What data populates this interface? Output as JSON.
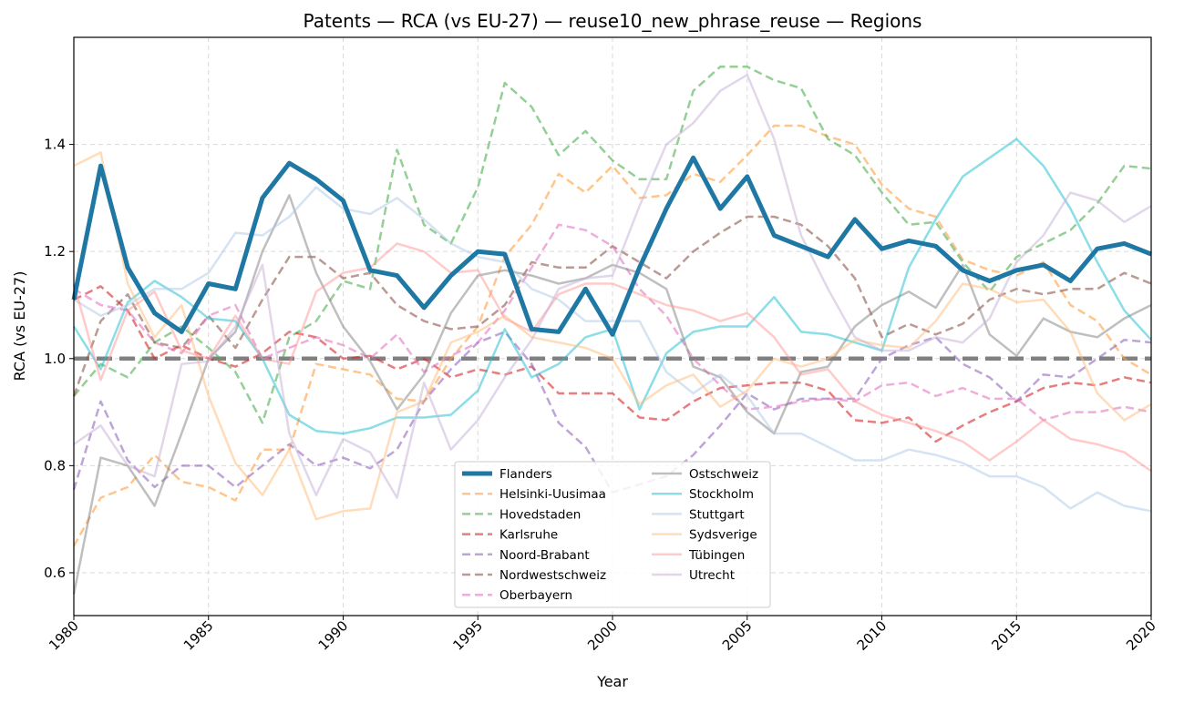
{
  "chart_data": {
    "type": "line",
    "title": "Patents — RCA (vs EU-27) — reuse10_new_phrase_reuse — Regions",
    "xlabel": "Year",
    "ylabel": "RCA (vs EU-27)",
    "xlim": [
      1980,
      2020
    ],
    "ylim": [
      0.52,
      1.6
    ],
    "xticks": [
      1980,
      1985,
      1990,
      1995,
      2000,
      2005,
      2010,
      2015,
      2020
    ],
    "yticks": [
      0.6,
      0.8,
      1.0,
      1.2,
      1.4
    ],
    "ytick_labels": [
      "0.6",
      "0.8",
      "1.0",
      "1.2",
      "1.4"
    ],
    "grid": true,
    "legend_position": "bottom-center",
    "reference_line": {
      "y": 1.0,
      "color": "#808080",
      "style": "dashed"
    },
    "x": [
      1980,
      1981,
      1982,
      1983,
      1984,
      1985,
      1986,
      1987,
      1988,
      1989,
      1990,
      1991,
      1992,
      1993,
      1994,
      1995,
      1996,
      1997,
      1998,
      1999,
      2000,
      2001,
      2002,
      2003,
      2004,
      2005,
      2006,
      2007,
      2008,
      2009,
      2010,
      2011,
      2012,
      2013,
      2014,
      2015,
      2016,
      2017,
      2018,
      2019,
      2020
    ],
    "series": [
      {
        "name": "Flanders",
        "color": "#1f77a4",
        "style": "solid",
        "emphasis": true,
        "values": [
          1.11,
          1.36,
          1.17,
          1.085,
          1.05,
          1.14,
          1.13,
          1.3,
          1.365,
          1.335,
          1.295,
          1.165,
          1.155,
          1.095,
          1.155,
          1.2,
          1.195,
          1.055,
          1.05,
          1.13,
          1.045,
          1.17,
          1.28,
          1.375,
          1.28,
          1.34,
          1.23,
          1.21,
          1.19,
          1.26,
          1.205,
          1.22,
          1.21,
          1.165,
          1.145,
          1.165,
          1.175,
          1.145,
          1.205,
          1.215,
          1.195
        ]
      },
      {
        "name": "Helsinki-Uusimaa",
        "color": "#ff9f40",
        "style": "dashed",
        "values": [
          0.65,
          0.74,
          0.76,
          0.82,
          0.77,
          0.76,
          0.735,
          0.83,
          0.83,
          0.99,
          0.98,
          0.97,
          0.925,
          0.92,
          1.0,
          1.06,
          1.19,
          1.25,
          1.345,
          1.31,
          1.36,
          1.3,
          1.305,
          1.345,
          1.33,
          1.38,
          1.435,
          1.435,
          1.415,
          1.4,
          1.325,
          1.28,
          1.265,
          1.185,
          1.165,
          1.155,
          1.18,
          1.1,
          1.07,
          1.0,
          0.97
        ]
      },
      {
        "name": "Hovedstaden",
        "color": "#4caf50",
        "style": "dashed",
        "values": [
          0.93,
          0.99,
          0.965,
          1.03,
          1.06,
          1.02,
          0.975,
          0.88,
          1.04,
          1.07,
          1.145,
          1.13,
          1.39,
          1.25,
          1.215,
          1.32,
          1.515,
          1.47,
          1.38,
          1.425,
          1.37,
          1.335,
          1.335,
          1.5,
          1.545,
          1.545,
          1.52,
          1.505,
          1.41,
          1.38,
          1.31,
          1.25,
          1.255,
          1.18,
          1.125,
          1.19,
          1.215,
          1.24,
          1.29,
          1.36,
          1.355
        ]
      },
      {
        "name": "Karlsruhe",
        "color": "#d62728",
        "style": "dashed",
        "values": [
          1.11,
          1.135,
          1.09,
          1.0,
          1.025,
          1.0,
          0.985,
          1.01,
          1.05,
          1.04,
          1.0,
          1.005,
          0.98,
          1.0,
          0.965,
          0.98,
          0.97,
          0.985,
          0.935,
          0.935,
          0.935,
          0.89,
          0.885,
          0.92,
          0.945,
          0.95,
          0.955,
          0.955,
          0.94,
          0.885,
          0.88,
          0.89,
          0.845,
          0.875,
          0.9,
          0.92,
          0.945,
          0.955,
          0.95,
          0.965,
          0.955
        ]
      },
      {
        "name": "Noord-Brabant",
        "color": "#9467bd",
        "style": "dashed",
        "values": [
          0.755,
          0.92,
          0.81,
          0.76,
          0.8,
          0.8,
          0.76,
          0.8,
          0.84,
          0.8,
          0.815,
          0.795,
          0.83,
          0.92,
          0.98,
          1.03,
          1.05,
          0.99,
          0.88,
          0.835,
          0.75,
          0.765,
          0.78,
          0.82,
          0.875,
          0.935,
          0.905,
          0.925,
          0.925,
          0.925,
          1.0,
          1.025,
          1.04,
          0.99,
          0.965,
          0.92,
          0.97,
          0.965,
          1.0,
          1.035,
          1.03
        ]
      },
      {
        "name": "Nordwestschweiz",
        "color": "#8c564b",
        "style": "dashed",
        "values": [
          0.93,
          1.07,
          1.12,
          1.03,
          1.02,
          1.08,
          1.02,
          1.11,
          1.19,
          1.19,
          1.15,
          1.16,
          1.1,
          1.07,
          1.055,
          1.06,
          1.1,
          1.18,
          1.17,
          1.17,
          1.21,
          1.18,
          1.15,
          1.2,
          1.235,
          1.265,
          1.265,
          1.25,
          1.21,
          1.15,
          1.04,
          1.065,
          1.045,
          1.065,
          1.11,
          1.13,
          1.12,
          1.13,
          1.13,
          1.16,
          1.14
        ]
      },
      {
        "name": "Oberbayern",
        "color": "#e377c2",
        "style": "dashed",
        "values": [
          1.13,
          1.1,
          1.09,
          1.03,
          1.01,
          1.08,
          1.1,
          1.0,
          1.02,
          1.04,
          1.025,
          1.0,
          1.045,
          0.975,
          1.005,
          1.03,
          1.09,
          1.17,
          1.25,
          1.24,
          1.21,
          1.13,
          1.08,
          1.0,
          0.95,
          0.905,
          0.91,
          0.92,
          0.925,
          0.92,
          0.95,
          0.955,
          0.93,
          0.945,
          0.925,
          0.925,
          0.885,
          0.9,
          0.9,
          0.91,
          0.9
        ]
      },
      {
        "name": "Ostschweiz",
        "color": "#7f7f7f",
        "style": "solid",
        "values": [
          0.56,
          0.815,
          0.8,
          0.725,
          0.86,
          1.0,
          1.05,
          1.2,
          1.305,
          1.16,
          1.06,
          0.995,
          0.905,
          0.97,
          1.085,
          1.155,
          1.165,
          1.155,
          1.14,
          1.15,
          1.175,
          1.16,
          1.13,
          0.985,
          0.965,
          0.9,
          0.86,
          0.975,
          0.985,
          1.06,
          1.1,
          1.125,
          1.095,
          1.175,
          1.045,
          1.005,
          1.075,
          1.05,
          1.04,
          1.075,
          1.1
        ]
      },
      {
        "name": "Stockholm",
        "color": "#17becf",
        "style": "solid",
        "values": [
          1.06,
          0.98,
          1.105,
          1.145,
          1.115,
          1.075,
          1.07,
          1.0,
          0.895,
          0.865,
          0.86,
          0.87,
          0.89,
          0.89,
          0.895,
          0.94,
          1.055,
          0.965,
          0.99,
          1.04,
          1.055,
          0.905,
          1.01,
          1.05,
          1.06,
          1.06,
          1.115,
          1.05,
          1.045,
          1.03,
          1.015,
          1.17,
          1.26,
          1.34,
          1.375,
          1.41,
          1.36,
          1.28,
          1.18,
          1.09,
          1.035
        ]
      },
      {
        "name": "Stuttgart",
        "color": "#aec7e8",
        "style": "solid",
        "values": [
          1.11,
          1.08,
          1.1,
          1.13,
          1.13,
          1.16,
          1.235,
          1.23,
          1.265,
          1.32,
          1.28,
          1.27,
          1.3,
          1.26,
          1.215,
          1.19,
          1.18,
          1.13,
          1.11,
          1.07,
          1.07,
          1.07,
          0.975,
          0.935,
          0.97,
          0.93,
          0.86,
          0.86,
          0.835,
          0.81,
          0.81,
          0.83,
          0.82,
          0.805,
          0.78,
          0.78,
          0.76,
          0.72,
          0.75,
          0.725,
          0.715
        ]
      },
      {
        "name": "Sydsverige",
        "color": "#ffbb78",
        "style": "solid",
        "values": [
          1.36,
          1.385,
          1.14,
          1.04,
          1.1,
          0.93,
          0.805,
          0.745,
          0.83,
          0.7,
          0.715,
          0.72,
          0.9,
          0.92,
          1.03,
          1.05,
          1.08,
          1.04,
          1.03,
          1.02,
          1.0,
          0.915,
          0.95,
          0.97,
          0.91,
          0.94,
          1.0,
          0.985,
          1.0,
          1.035,
          1.025,
          1.02,
          1.07,
          1.14,
          1.13,
          1.105,
          1.11,
          1.05,
          0.935,
          0.885,
          0.915
        ]
      },
      {
        "name": "Tübingen",
        "color": "#ff9896",
        "style": "solid",
        "values": [
          1.14,
          0.96,
          1.09,
          1.125,
          1.015,
          1.0,
          1.08,
          1.0,
          0.99,
          1.125,
          1.16,
          1.17,
          1.215,
          1.2,
          1.16,
          1.165,
          1.075,
          1.05,
          1.12,
          1.14,
          1.14,
          1.12,
          1.1,
          1.09,
          1.07,
          1.085,
          1.04,
          0.97,
          0.98,
          0.92,
          0.895,
          0.88,
          0.865,
          0.845,
          0.81,
          0.845,
          0.885,
          0.85,
          0.84,
          0.825,
          0.79
        ]
      },
      {
        "name": "Utrecht",
        "color": "#c5b0d5",
        "style": "solid",
        "values": [
          0.84,
          0.875,
          0.8,
          0.78,
          0.99,
          0.995,
          1.06,
          1.175,
          0.86,
          0.745,
          0.85,
          0.825,
          0.74,
          0.955,
          0.83,
          0.885,
          0.965,
          1.035,
          1.13,
          1.15,
          1.155,
          1.285,
          1.4,
          1.44,
          1.5,
          1.53,
          1.41,
          1.23,
          1.13,
          1.04,
          1.015,
          1.015,
          1.04,
          1.03,
          1.075,
          1.18,
          1.23,
          1.31,
          1.295,
          1.255,
          1.285
        ]
      }
    ]
  }
}
